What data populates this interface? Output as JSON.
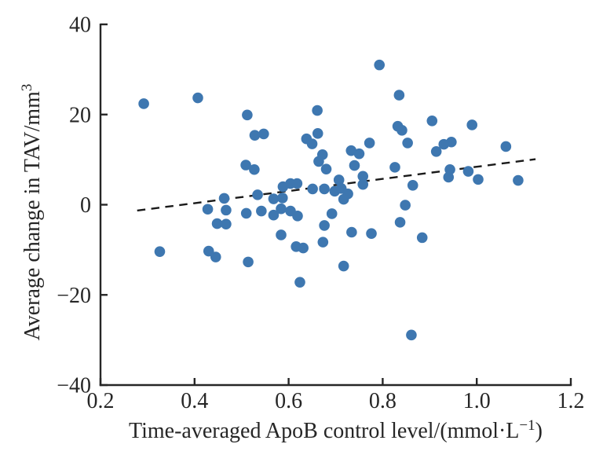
{
  "figure": {
    "background": "#ffffff"
  },
  "chart_data": {
    "type": "scatter",
    "title": "",
    "xlabel_prefix": "Time-averaged ApoB control level/(mmol·L",
    "xlabel_sup": "−1",
    "xlabel_suffix": ")",
    "ylabel_prefix": "Average change in TAV/mm",
    "ylabel_sup": "3",
    "xlim": [
      0.2,
      1.2
    ],
    "ylim": [
      -40,
      40
    ],
    "x_ticks": [
      0.2,
      0.4,
      0.6,
      0.8,
      1.0,
      1.2
    ],
    "x_tick_labels": [
      "0.2",
      "0.4",
      "0.6",
      "0.8",
      "1.0",
      "1.2"
    ],
    "y_ticks": [
      40,
      20,
      0,
      -20,
      -40
    ],
    "y_tick_labels": [
      "40",
      "20",
      "0",
      "−20",
      "−40"
    ],
    "grid": false,
    "legend": "none",
    "marker_color": "#3e77b0",
    "axis_color": "#262626",
    "trendline": {
      "style": "dashed",
      "color": "#1a1a1a",
      "x1": 0.278,
      "y1": -1.3,
      "x2": 1.125,
      "y2": 10.1
    },
    "points": [
      [
        0.292,
        22.4
      ],
      [
        0.407,
        23.7
      ],
      [
        0.512,
        19.9
      ],
      [
        0.528,
        15.4
      ],
      [
        0.547,
        15.7
      ],
      [
        0.793,
        31.0
      ],
      [
        0.835,
        24.3
      ],
      [
        0.661,
        20.9
      ],
      [
        0.638,
        14.6
      ],
      [
        0.65,
        13.5
      ],
      [
        0.662,
        15.8
      ],
      [
        0.772,
        13.7
      ],
      [
        0.832,
        17.4
      ],
      [
        0.841,
        16.5
      ],
      [
        0.853,
        13.7
      ],
      [
        0.905,
        18.6
      ],
      [
        0.99,
        17.7
      ],
      [
        0.946,
        13.9
      ],
      [
        0.93,
        13.4
      ],
      [
        0.914,
        11.8
      ],
      [
        1.062,
        12.9
      ],
      [
        0.509,
        8.8
      ],
      [
        0.527,
        7.8
      ],
      [
        0.463,
        1.4
      ],
      [
        0.428,
        -1.0
      ],
      [
        0.467,
        -1.2
      ],
      [
        0.51,
        -1.9
      ],
      [
        0.448,
        -4.2
      ],
      [
        0.467,
        -4.3
      ],
      [
        0.326,
        -10.4
      ],
      [
        0.43,
        -10.3
      ],
      [
        0.445,
        -11.6
      ],
      [
        0.514,
        -12.7
      ],
      [
        0.672,
        11.1
      ],
      [
        0.733,
        12.0
      ],
      [
        0.75,
        11.3
      ],
      [
        0.664,
        9.6
      ],
      [
        0.68,
        7.9
      ],
      [
        0.74,
        8.7
      ],
      [
        0.826,
        8.3
      ],
      [
        0.758,
        6.3
      ],
      [
        0.758,
        4.5
      ],
      [
        0.707,
        5.5
      ],
      [
        0.534,
        2.2
      ],
      [
        0.588,
        4.0
      ],
      [
        0.604,
        4.7
      ],
      [
        0.618,
        4.7
      ],
      [
        0.651,
        3.5
      ],
      [
        0.676,
        3.5
      ],
      [
        0.698,
        3.0
      ],
      [
        0.712,
        3.6
      ],
      [
        0.726,
        2.4
      ],
      [
        0.717,
        1.2
      ],
      [
        0.568,
        1.3
      ],
      [
        0.587,
        1.5
      ],
      [
        0.584,
        -0.9
      ],
      [
        0.604,
        -1.4
      ],
      [
        0.619,
        -2.5
      ],
      [
        0.568,
        -2.3
      ],
      [
        0.542,
        -1.4
      ],
      [
        0.692,
        -2.0
      ],
      [
        0.676,
        -4.6
      ],
      [
        0.584,
        -6.7
      ],
      [
        0.734,
        -6.1
      ],
      [
        0.776,
        -6.4
      ],
      [
        0.616,
        -9.3
      ],
      [
        0.631,
        -9.6
      ],
      [
        0.673,
        -8.3
      ],
      [
        0.717,
        -13.6
      ],
      [
        0.848,
        -0.1
      ],
      [
        0.837,
        -3.9
      ],
      [
        0.943,
        7.8
      ],
      [
        0.94,
        6.1
      ],
      [
        0.982,
        7.4
      ],
      [
        1.003,
        5.6
      ],
      [
        1.088,
        5.4
      ],
      [
        0.864,
        4.3
      ],
      [
        0.884,
        -7.3
      ],
      [
        0.624,
        -17.2
      ],
      [
        0.861,
        -28.9
      ]
    ]
  }
}
